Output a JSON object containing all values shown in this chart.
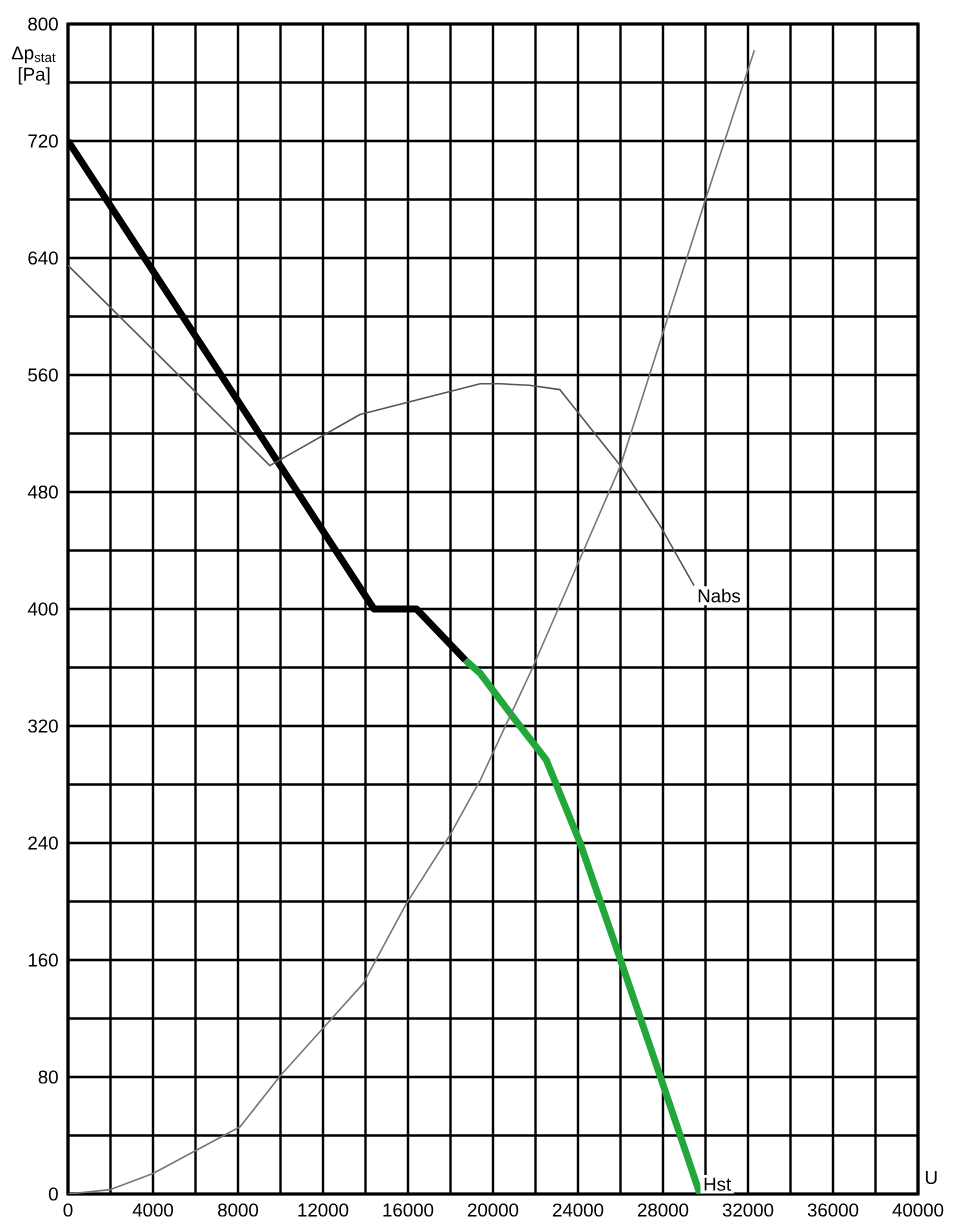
{
  "chart_data": {
    "type": "line",
    "xlabel": "U",
    "ylabel": "Δp$_{stat}$ [Pa]",
    "xlim": [
      0,
      40000
    ],
    "ylim": [
      0,
      800
    ],
    "xticks": [
      0,
      4000,
      8000,
      12000,
      16000,
      20000,
      24000,
      28000,
      32000,
      36000,
      40000
    ],
    "yticks": [
      0,
      80,
      160,
      240,
      320,
      400,
      480,
      560,
      640,
      720,
      800
    ],
    "grid": true,
    "marker": "none",
    "line_style": "solid",
    "series": [
      {
        "color": "#000000",
        "x": [
          0,
          14400,
          16400,
          18700
        ],
        "values": [
          720,
          400,
          400,
          365
        ]
      },
      {
        "name": "Hst",
        "color": "#22a83a",
        "x": [
          18700,
          19400,
          21000,
          22500,
          24100,
          26000,
          27860,
          29740
        ],
        "values": [
          365,
          356,
          325,
          297,
          240,
          160,
          81,
          0
        ]
      },
      {
        "name": "Nabs",
        "color": "#555555",
        "x": [
          0,
          9500,
          13740,
          19400,
          20330,
          21700,
          23150,
          26000,
          27860,
          29460
        ],
        "values": [
          635,
          498,
          533,
          554,
          554,
          553,
          550,
          498,
          457,
          416
        ]
      },
      {
        "color": "#777777",
        "x": [
          0,
          2000,
          4000,
          8100,
          10000,
          13900,
          15900,
          18000,
          19400,
          21900,
          26000,
          30000,
          32300
        ],
        "values": [
          0,
          3,
          14,
          46,
          81,
          144,
          198,
          246,
          283,
          361,
          498,
          680,
          782
        ]
      }
    ]
  }
}
